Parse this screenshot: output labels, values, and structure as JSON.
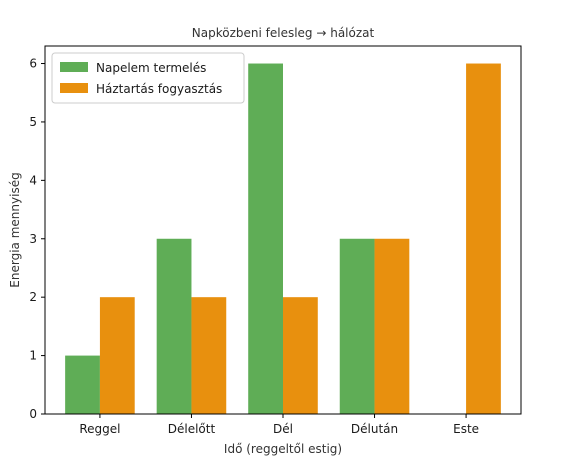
{
  "chart_data": {
    "type": "bar",
    "title": "Napközbeni felesleg → hálózat",
    "xlabel": "Idő (reggeltől estig)",
    "ylabel": "Energia mennyiség",
    "categories": [
      "Reggel",
      "Délelőtt",
      "Dél",
      "Délután",
      "Este"
    ],
    "series": [
      {
        "name": "Napelem termelés",
        "values": [
          1,
          3,
          6,
          3,
          0
        ],
        "color": "#5fad56"
      },
      {
        "name": "Háztartás fogyasztás",
        "values": [
          2,
          2,
          2,
          3,
          6
        ],
        "color": "#e8900e"
      }
    ],
    "ylim": [
      0,
      6.3
    ],
    "yticks": [
      0,
      1,
      2,
      3,
      4,
      5,
      6
    ],
    "grid": false,
    "legend": "top-left"
  }
}
